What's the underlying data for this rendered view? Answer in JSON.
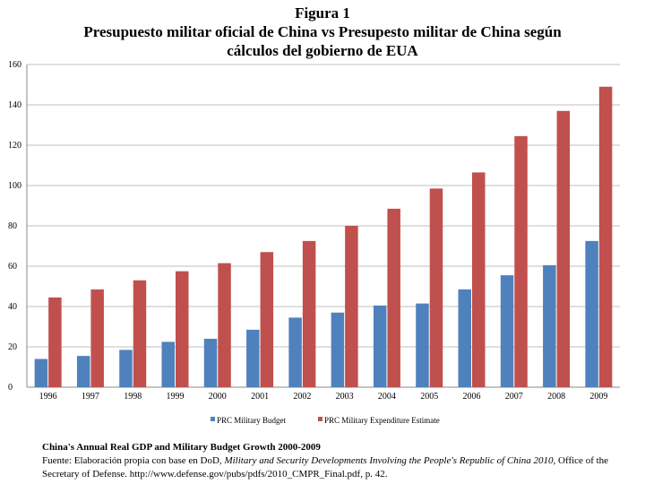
{
  "title": {
    "line1": "Figura 1",
    "line2": "Presupuesto militar oficial de China vs Presupesto militar de China según",
    "line3": "cálculos del gobierno de EUA"
  },
  "chart_data": {
    "type": "bar",
    "categories": [
      "1996",
      "1997",
      "1998",
      "1999",
      "2000",
      "2001",
      "2002",
      "2003",
      "2004",
      "2005",
      "2006",
      "2007",
      "2008",
      "2009"
    ],
    "series": [
      {
        "name": "PRC Military Budget",
        "color": "#4f81bd",
        "values": [
          14,
          15.5,
          18.5,
          22.5,
          24,
          28.5,
          34.5,
          37,
          40.5,
          41.5,
          48.5,
          55.5,
          60.5,
          72.5
        ]
      },
      {
        "name": "PRC Military Expenditure Estimate",
        "color": "#c0504d",
        "values": [
          44.5,
          48.5,
          53,
          57.5,
          61.5,
          67,
          72.5,
          80,
          88.5,
          98.5,
          106.5,
          124.5,
          137,
          149
        ]
      }
    ],
    "y_ticks": [
      0,
      20,
      40,
      60,
      80,
      100,
      120,
      140,
      160
    ],
    "ylim": [
      0,
      160
    ],
    "grid": true,
    "legend": "bottom"
  },
  "source": {
    "heading": "China's Annual Real GDP and Military Budget Growth 2000-2009",
    "prefix": "Fuente: Elaboración propia con base en DoD, ",
    "italic": "Military and Security Developments Involving the People's Republic of China 2010,",
    "suffix": " Office of the Secretary of Defense. http://www.defense.gov/pubs/pdfs/2010_CMPR_Final.pdf, p. 42."
  }
}
